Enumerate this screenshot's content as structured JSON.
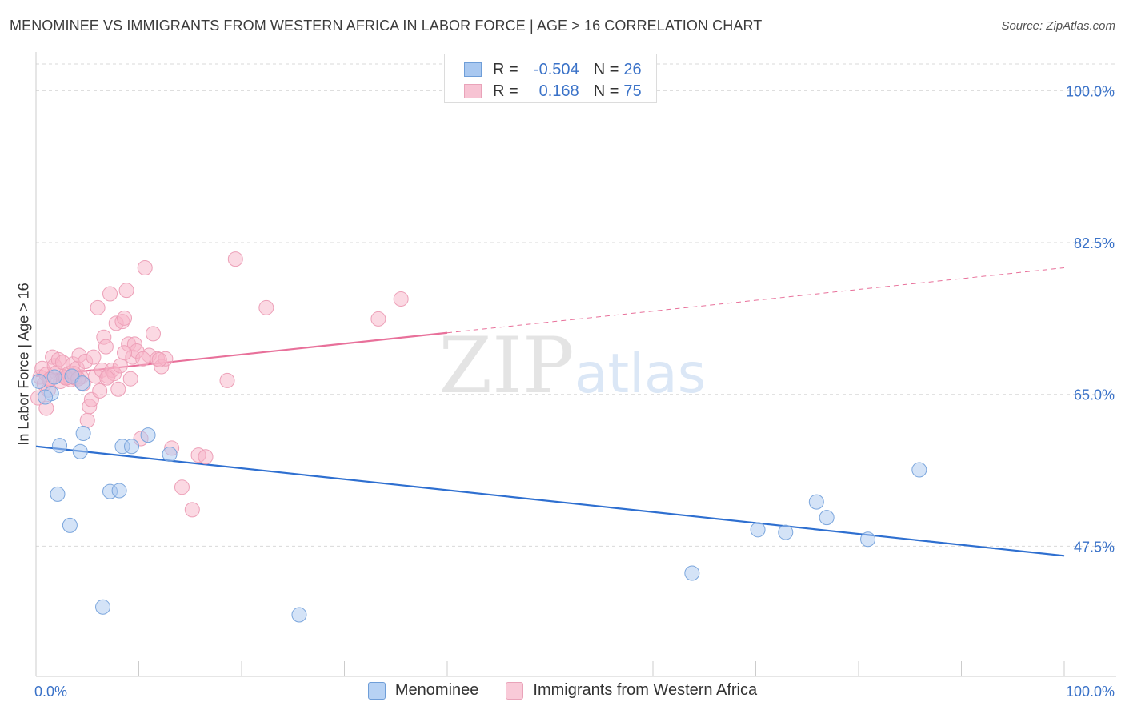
{
  "title": "MENOMINEE VS IMMIGRANTS FROM WESTERN AFRICA IN LABOR FORCE | AGE > 16 CORRELATION CHART",
  "source": "Source: ZipAtlas.com",
  "watermark": {
    "zip": "ZIP",
    "atlas": "atlas"
  },
  "legend": {
    "rows": [
      {
        "r_label": "R =",
        "r_value": "-0.504",
        "n_label": "N =",
        "n_value": "26"
      },
      {
        "r_label": "R =",
        "r_value": "0.168",
        "n_label": "N =",
        "n_value": "75"
      }
    ]
  },
  "colors": {
    "blue_fill": "#a9c8f0",
    "blue_line": "#2e6fd0",
    "blue_text": "#3a72c8",
    "pink_fill": "#f7b3c8",
    "pink_line": "#e8709a",
    "grid": "#d9d9d9",
    "axis": "#cccccc"
  },
  "chart_data": {
    "type": "scatter",
    "title": "MENOMINEE VS IMMIGRANTS FROM WESTERN AFRICA IN LABOR FORCE | AGE > 16 CORRELATION CHART",
    "xlabel": "",
    "ylabel": "In Labor Force | Age > 16",
    "xlim": [
      0,
      100
    ],
    "ylim": [
      32.5,
      104
    ],
    "x_tick_labels": [
      "0.0%",
      "100.0%"
    ],
    "y_ticks": [
      47.5,
      65.0,
      82.5,
      100.0
    ],
    "y_tick_labels": [
      "47.5%",
      "65.0%",
      "82.5%",
      "100.0%"
    ],
    "series": [
      {
        "name": "Menominee",
        "color": "#a9c8f0",
        "points": [
          [
            1.5,
            65.1
          ],
          [
            0.9,
            64.7
          ],
          [
            3.5,
            67.1
          ],
          [
            4.5,
            66.3
          ],
          [
            2.3,
            59.1
          ],
          [
            4.3,
            58.4
          ],
          [
            4.6,
            60.5
          ],
          [
            8.4,
            59.0
          ],
          [
            9.3,
            59.0
          ],
          [
            10.9,
            60.3
          ],
          [
            13.0,
            58.1
          ],
          [
            2.1,
            53.5
          ],
          [
            7.2,
            53.8
          ],
          [
            8.1,
            53.9
          ],
          [
            3.3,
            49.9
          ],
          [
            6.5,
            40.5
          ],
          [
            25.6,
            39.6
          ],
          [
            63.8,
            44.4
          ],
          [
            70.2,
            49.4
          ],
          [
            72.9,
            49.1
          ],
          [
            75.9,
            52.6
          ],
          [
            76.9,
            50.8
          ],
          [
            80.9,
            48.3
          ],
          [
            85.9,
            56.3
          ],
          [
            0.3,
            66.5
          ],
          [
            1.8,
            67.0
          ]
        ],
        "trend": {
          "x": [
            0,
            100
          ],
          "y": [
            59.0,
            46.4
          ],
          "dashed_from": null
        }
      },
      {
        "name": "Immigrants from Western Africa",
        "color": "#f7b3c8",
        "points": [
          [
            0.2,
            64.6
          ],
          [
            0.4,
            67.0
          ],
          [
            0.6,
            68.0
          ],
          [
            0.8,
            66.2
          ],
          [
            1.0,
            67.3
          ],
          [
            1.2,
            65.5
          ],
          [
            1.4,
            66.8
          ],
          [
            1.6,
            69.3
          ],
          [
            1.8,
            68.3
          ],
          [
            2.0,
            67.5
          ],
          [
            2.2,
            69.0
          ],
          [
            2.4,
            66.5
          ],
          [
            2.6,
            68.7
          ],
          [
            2.8,
            67.0
          ],
          [
            3.0,
            66.9
          ],
          [
            3.2,
            67.4
          ],
          [
            3.4,
            66.7
          ],
          [
            3.6,
            68.5
          ],
          [
            3.8,
            66.9
          ],
          [
            4.0,
            68.0
          ],
          [
            4.2,
            69.5
          ],
          [
            4.4,
            67.0
          ],
          [
            4.6,
            66.2
          ],
          [
            4.8,
            68.8
          ],
          [
            5.0,
            62.0
          ],
          [
            5.2,
            63.6
          ],
          [
            5.4,
            64.4
          ],
          [
            5.6,
            69.3
          ],
          [
            5.8,
            67.1
          ],
          [
            6.0,
            75.0
          ],
          [
            6.2,
            65.4
          ],
          [
            6.4,
            67.8
          ],
          [
            6.6,
            71.6
          ],
          [
            6.8,
            70.5
          ],
          [
            7.0,
            67.1
          ],
          [
            7.2,
            76.6
          ],
          [
            7.4,
            67.8
          ],
          [
            7.6,
            67.4
          ],
          [
            7.8,
            73.2
          ],
          [
            8.0,
            65.6
          ],
          [
            8.2,
            68.3
          ],
          [
            8.4,
            73.4
          ],
          [
            8.6,
            73.8
          ],
          [
            8.8,
            77.0
          ],
          [
            9.0,
            70.8
          ],
          [
            9.2,
            66.8
          ],
          [
            9.4,
            69.3
          ],
          [
            9.6,
            70.8
          ],
          [
            9.8,
            70.0
          ],
          [
            10.2,
            59.9
          ],
          [
            10.6,
            79.6
          ],
          [
            11.0,
            69.5
          ],
          [
            11.4,
            72.0
          ],
          [
            11.8,
            69.1
          ],
          [
            12.2,
            68.2
          ],
          [
            12.6,
            69.1
          ],
          [
            13.2,
            58.8
          ],
          [
            14.2,
            54.3
          ],
          [
            15.2,
            51.7
          ],
          [
            15.8,
            58.0
          ],
          [
            16.5,
            57.8
          ],
          [
            18.6,
            66.6
          ],
          [
            19.4,
            80.6
          ],
          [
            22.4,
            75.0
          ],
          [
            33.3,
            73.7
          ],
          [
            35.5,
            76.0
          ],
          [
            1.0,
            63.4
          ],
          [
            2.9,
            66.9
          ],
          [
            3.7,
            67.4
          ],
          [
            12.0,
            69.0
          ],
          [
            10.4,
            69.1
          ],
          [
            8.6,
            69.8
          ],
          [
            6.9,
            66.9
          ],
          [
            4.1,
            66.8
          ],
          [
            1.3,
            66.7
          ]
        ],
        "trend": {
          "x": [
            0,
            100
          ],
          "y": [
            67.1,
            79.6
          ],
          "dashed_from": 40.0
        }
      }
    ]
  },
  "bottom_legend": [
    {
      "label": "Menominee"
    },
    {
      "label": "Immigrants from Western Africa"
    }
  ]
}
